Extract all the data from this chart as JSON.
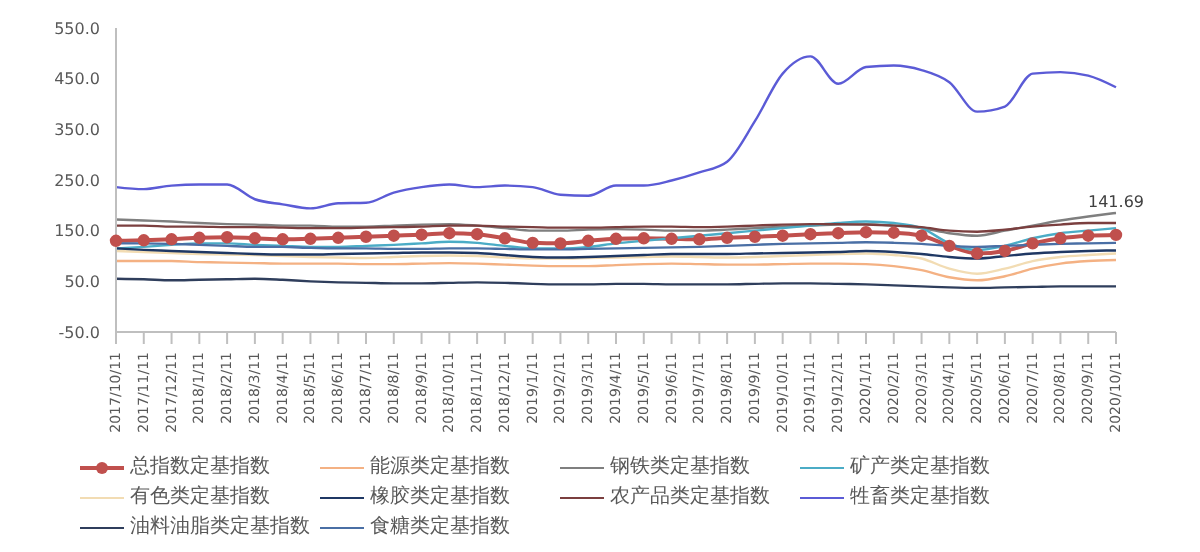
{
  "chart_data": {
    "type": "line",
    "categories": [
      "2017/10/11",
      "2017/11/11",
      "2017/12/11",
      "2018/1/11",
      "2018/2/11",
      "2018/3/11",
      "2018/4/11",
      "2018/5/11",
      "2018/6/11",
      "2018/7/11",
      "2018/8/11",
      "2018/9/11",
      "2018/10/11",
      "2018/11/11",
      "2018/12/11",
      "2019/1/11",
      "2019/2/11",
      "2019/3/11",
      "2019/4/11",
      "2019/5/11",
      "2019/6/11",
      "2019/7/11",
      "2019/8/11",
      "2019/9/11",
      "2019/10/11",
      "2019/11/11",
      "2019/12/11",
      "2020/1/11",
      "2020/2/11",
      "2020/3/11",
      "2020/4/11",
      "2020/5/11",
      "2020/6/11",
      "2020/7/11",
      "2020/8/11",
      "2020/9/11",
      "2020/10/11"
    ],
    "series": [
      {
        "name": "总指数定基指数",
        "color": "#c0504d",
        "marker": "circle",
        "values": [
          130,
          131,
          133,
          136,
          137,
          135,
          133,
          134,
          136,
          138,
          140,
          142,
          145,
          143,
          135,
          126,
          125,
          130,
          134,
          135,
          134,
          133,
          136,
          138,
          140,
          143,
          145,
          147,
          146,
          140,
          120,
          105,
          110,
          125,
          135,
          140,
          141.69
        ],
        "value_labels": [
          null,
          null,
          null,
          null,
          null,
          null,
          null,
          null,
          null,
          null,
          null,
          null,
          null,
          null,
          null,
          null,
          null,
          null,
          null,
          null,
          null,
          null,
          null,
          null,
          null,
          null,
          null,
          null,
          null,
          null,
          null,
          null,
          null,
          null,
          null,
          null,
          "141.69"
        ]
      },
      {
        "name": "能源类定基指数",
        "color": "#f4b183",
        "values": [
          90,
          90,
          90,
          88,
          87,
          86,
          85,
          85,
          85,
          84,
          84,
          85,
          86,
          85,
          83,
          81,
          80,
          80,
          82,
          84,
          85,
          84,
          83,
          83,
          84,
          85,
          85,
          84,
          80,
          72,
          58,
          52,
          60,
          75,
          85,
          90,
          92
        ]
      },
      {
        "name": "钢铁类定基指数",
        "color": "#7f7f7f",
        "values": [
          172,
          170,
          168,
          165,
          163,
          162,
          160,
          160,
          158,
          158,
          160,
          162,
          163,
          160,
          155,
          150,
          150,
          152,
          153,
          152,
          150,
          150,
          152,
          155,
          158,
          160,
          162,
          163,
          160,
          155,
          145,
          140,
          150,
          160,
          170,
          178,
          185
        ]
      },
      {
        "name": "矿产类定基指数",
        "color": "#4bacc6",
        "values": [
          115,
          118,
          122,
          125,
          125,
          122,
          120,
          118,
          118,
          120,
          122,
          125,
          128,
          126,
          120,
          115,
          115,
          118,
          125,
          130,
          135,
          140,
          145,
          150,
          155,
          160,
          165,
          168,
          165,
          155,
          125,
          112,
          120,
          135,
          145,
          150,
          155
        ]
      },
      {
        "name": "有色类定基指数",
        "color": "#f2dcb3",
        "values": [
          110,
          108,
          106,
          104,
          103,
          102,
          100,
          98,
          97,
          96,
          98,
          100,
          101,
          100,
          97,
          95,
          95,
          96,
          97,
          98,
          99,
          98,
          97,
          98,
          100,
          102,
          104,
          105,
          102,
          95,
          75,
          65,
          75,
          90,
          98,
          102,
          105
        ]
      },
      {
        "name": "橡胶类定基指数",
        "color": "#1f3864",
        "values": [
          115,
          112,
          110,
          108,
          106,
          104,
          103,
          103,
          104,
          105,
          106,
          107,
          107,
          106,
          102,
          98,
          97,
          98,
          100,
          102,
          104,
          104,
          104,
          105,
          106,
          107,
          108,
          110,
          108,
          104,
          98,
          95,
          100,
          105,
          108,
          110,
          111
        ]
      },
      {
        "name": "农产品类定基指数",
        "color": "#7b3f3f",
        "values": [
          160,
          160,
          158,
          158,
          157,
          157,
          156,
          155,
          155,
          156,
          157,
          158,
          160,
          160,
          158,
          157,
          156,
          156,
          157,
          158,
          158,
          157,
          158,
          160,
          162,
          163,
          163,
          162,
          160,
          157,
          150,
          148,
          152,
          158,
          162,
          165,
          165
        ]
      },
      {
        "name": "牲畜类定基指数",
        "color": "#5b5bd6",
        "values": [
          236,
          232,
          239,
          241,
          241,
          212,
          202,
          194,
          204,
          205,
          225,
          236,
          241,
          236,
          239,
          236,
          221,
          219,
          239,
          239,
          249,
          265,
          286,
          366,
          460,
          494,
          440,
          473,
          476,
          467,
          443,
          385,
          395,
          460,
          463,
          456,
          433
        ]
      },
      {
        "name": "油料油脂类定基指数",
        "color": "#2f3e5c",
        "values": [
          55,
          54,
          52,
          53,
          54,
          55,
          53,
          50,
          48,
          47,
          46,
          46,
          47,
          48,
          47,
          45,
          44,
          44,
          45,
          45,
          44,
          44,
          44,
          45,
          46,
          46,
          45,
          44,
          42,
          40,
          38,
          37,
          38,
          39,
          40,
          40,
          40
        ]
      },
      {
        "name": "食糖类定基指数",
        "color": "#4a6fa5",
        "values": [
          125,
          125,
          124,
          122,
          120,
          118,
          118,
          116,
          115,
          115,
          114,
          114,
          115,
          115,
          114,
          113,
          113,
          114,
          115,
          116,
          117,
          118,
          120,
          122,
          124,
          125,
          126,
          127,
          126,
          124,
          120,
          118,
          120,
          122,
          124,
          125,
          126
        ]
      }
    ],
    "ylim": [
      -50,
      550
    ],
    "yticks": [
      {
        "value": -50,
        "label": "-50.0"
      },
      {
        "value": 50,
        "label": "50.0"
      },
      {
        "value": 150,
        "label": "150.0"
      },
      {
        "value": 250,
        "label": "250.0"
      },
      {
        "value": 350,
        "label": "350.0"
      },
      {
        "value": 450,
        "label": "450.0"
      },
      {
        "value": 550,
        "label": "550.0"
      }
    ],
    "grid": false,
    "legend": "bottom",
    "marker": "none",
    "line_style": "solid"
  }
}
